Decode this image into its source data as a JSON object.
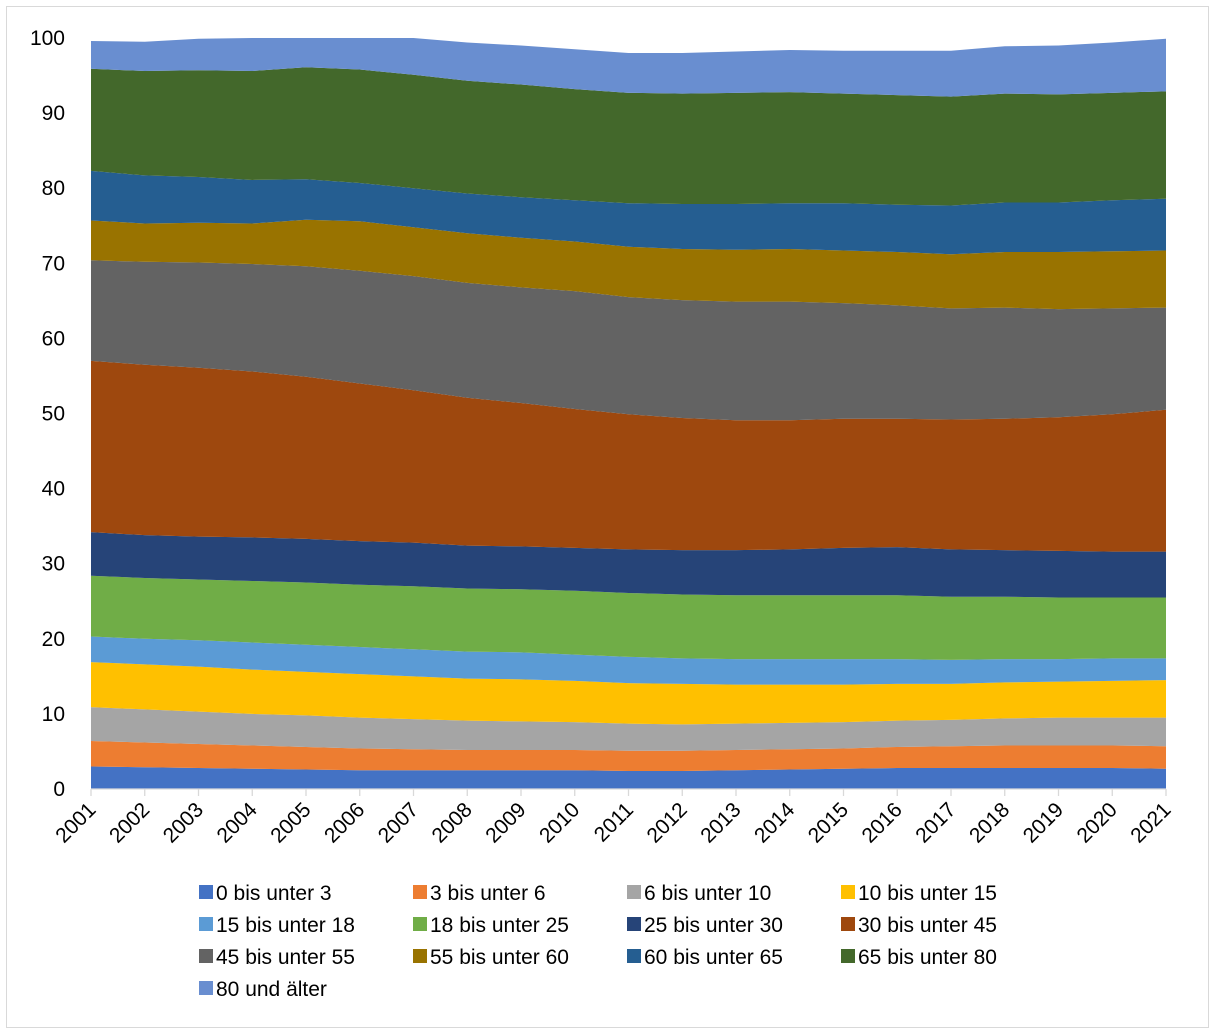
{
  "chart_data": {
    "type": "area",
    "stacked": true,
    "x": [
      "2001",
      "2002",
      "2003",
      "2004",
      "2005",
      "2006",
      "2007",
      "2008",
      "2009",
      "2010",
      "2011",
      "2012",
      "2013",
      "2014",
      "2015",
      "2016",
      "2017",
      "2018",
      "2019",
      "2020",
      "2021"
    ],
    "ylim": [
      0,
      100
    ],
    "yticks": [
      "0",
      "10",
      "20",
      "30",
      "40",
      "50",
      "60",
      "70",
      "80",
      "90",
      "100"
    ],
    "grid": false,
    "legend_position": "bottom",
    "series": [
      {
        "name": "0 bis unter 3",
        "color": "#4472C4",
        "values": [
          3.0,
          2.9,
          2.8,
          2.7,
          2.6,
          2.5,
          2.5,
          2.5,
          2.5,
          2.5,
          2.4,
          2.4,
          2.5,
          2.6,
          2.7,
          2.8,
          2.8,
          2.8,
          2.8,
          2.8,
          2.7
        ]
      },
      {
        "name": "3 bis unter 6",
        "color": "#ED7D31",
        "values": [
          3.4,
          3.3,
          3.2,
          3.1,
          3.0,
          2.9,
          2.8,
          2.7,
          2.7,
          2.7,
          2.7,
          2.7,
          2.7,
          2.7,
          2.7,
          2.8,
          2.9,
          3.0,
          3.0,
          3.0,
          3.0
        ]
      },
      {
        "name": "6 bis unter 10",
        "color": "#A5A5A5",
        "values": [
          4.5,
          4.4,
          4.3,
          4.2,
          4.2,
          4.1,
          4.0,
          3.9,
          3.8,
          3.7,
          3.6,
          3.5,
          3.5,
          3.5,
          3.5,
          3.5,
          3.5,
          3.6,
          3.7,
          3.7,
          3.8
        ]
      },
      {
        "name": "10 bis unter 15",
        "color": "#FFC000",
        "values": [
          6.0,
          6.0,
          6.0,
          5.9,
          5.8,
          5.8,
          5.7,
          5.6,
          5.6,
          5.5,
          5.4,
          5.4,
          5.2,
          5.1,
          5.0,
          4.9,
          4.8,
          4.8,
          4.8,
          4.9,
          5.0
        ]
      },
      {
        "name": "15 bis unter 18",
        "color": "#5B9BD5",
        "values": [
          3.4,
          3.4,
          3.5,
          3.6,
          3.6,
          3.6,
          3.6,
          3.6,
          3.6,
          3.5,
          3.5,
          3.4,
          3.4,
          3.4,
          3.4,
          3.3,
          3.2,
          3.1,
          3.0,
          3.0,
          2.9
        ]
      },
      {
        "name": "18 bis unter 25",
        "color": "#70AD47",
        "values": [
          8.1,
          8.1,
          8.1,
          8.2,
          8.3,
          8.3,
          8.4,
          8.4,
          8.4,
          8.5,
          8.5,
          8.5,
          8.5,
          8.5,
          8.5,
          8.5,
          8.4,
          8.3,
          8.2,
          8.1,
          8.1
        ]
      },
      {
        "name": "25 bis unter 30",
        "color": "#264478",
        "values": [
          5.8,
          5.7,
          5.7,
          5.8,
          5.8,
          5.8,
          5.8,
          5.7,
          5.7,
          5.7,
          5.8,
          5.9,
          6.0,
          6.1,
          6.3,
          6.4,
          6.3,
          6.2,
          6.2,
          6.1,
          6.1
        ]
      },
      {
        "name": "30 bis unter 45",
        "color": "#9E480E",
        "values": [
          22.8,
          22.7,
          22.5,
          22.1,
          21.6,
          21.0,
          20.3,
          19.7,
          19.1,
          18.5,
          18.0,
          17.6,
          17.3,
          17.2,
          17.2,
          17.1,
          17.3,
          17.5,
          17.8,
          18.3,
          18.9
        ]
      },
      {
        "name": "45 bis unter 55",
        "color": "#636363",
        "values": [
          13.4,
          13.7,
          14.0,
          14.3,
          14.7,
          15.0,
          15.2,
          15.3,
          15.4,
          15.7,
          15.6,
          15.7,
          15.8,
          15.8,
          15.4,
          15.1,
          14.8,
          14.8,
          14.4,
          14.1,
          13.6
        ]
      },
      {
        "name": "55 bis unter 60",
        "color": "#997300",
        "values": [
          5.3,
          5.1,
          5.3,
          5.4,
          6.2,
          6.6,
          6.5,
          6.6,
          6.6,
          6.6,
          6.7,
          6.8,
          6.9,
          7.0,
          7.0,
          7.1,
          7.2,
          7.4,
          7.6,
          7.6,
          7.6
        ]
      },
      {
        "name": "60 bis unter 65",
        "color": "#255E91",
        "values": [
          6.6,
          6.4,
          6.1,
          5.8,
          5.4,
          5.1,
          5.2,
          5.3,
          5.4,
          5.5,
          5.8,
          6.0,
          6.1,
          6.1,
          6.3,
          6.3,
          6.5,
          6.6,
          6.6,
          6.8,
          6.9
        ]
      },
      {
        "name": "65 bis unter 80",
        "color": "#43682B",
        "values": [
          13.6,
          13.9,
          14.2,
          14.5,
          14.9,
          15.1,
          15.1,
          15.0,
          15.0,
          14.8,
          14.7,
          14.7,
          14.8,
          14.8,
          14.6,
          14.6,
          14.5,
          14.5,
          14.4,
          14.3,
          14.3
        ]
      },
      {
        "name": "80 und älter",
        "color": "#698ED0",
        "values": [
          3.7,
          3.9,
          4.2,
          4.5,
          4.6,
          4.7,
          4.9,
          5.1,
          5.2,
          5.3,
          5.3,
          5.4,
          5.5,
          5.6,
          5.7,
          5.9,
          6.1,
          6.3,
          6.5,
          6.7,
          7.0
        ]
      }
    ]
  }
}
